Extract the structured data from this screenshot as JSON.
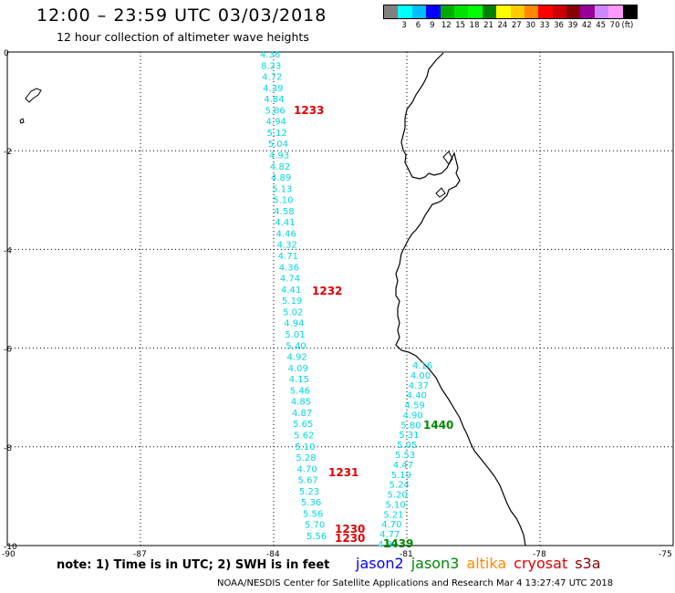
{
  "title": "12:00 – 23:59 UTC 03/03/2018",
  "subtitle": "12 hour collection of altimeter wave heights",
  "legend": {
    "unit": "(ft)",
    "colors": [
      "#808080",
      "#00ffff",
      "#00bfff",
      "#0000ff",
      "#00aa00",
      "#00e000",
      "#00ff00",
      "#008000",
      "#ffff00",
      "#ffcc00",
      "#ff8800",
      "#ff0000",
      "#cc0000",
      "#880000",
      "#990099",
      "#cc88ff",
      "#ff99ff",
      "#000000"
    ],
    "values": [
      "3",
      "6",
      "9",
      "12",
      "15",
      "18",
      "21",
      "24",
      "27",
      "30",
      "33",
      "36",
      "39",
      "42",
      "45",
      "70"
    ]
  },
  "axes": {
    "lat_labels": [
      "0",
      "-2",
      "-4",
      "-6",
      "-8",
      "-10"
    ],
    "lon_labels": [
      "-90",
      "-87",
      "-84",
      "-81",
      "-78",
      "-75"
    ],
    "lat_range": [
      -10,
      0
    ],
    "lon_range": [
      -90,
      -75
    ]
  },
  "tracks": {
    "track1": {
      "swh": [
        "4.36",
        "8.23",
        "4.72",
        "4.39",
        "4.84",
        "5.86",
        "4.94",
        "5.12",
        "5.04",
        "4.93",
        "4.82",
        "4.89",
        "5.13",
        "5.10",
        "4.58",
        "4.41",
        "4.46",
        "4.32",
        "4.71",
        "4.36",
        "4.74",
        "4.41",
        "5.19",
        "5.02",
        "4.94",
        "5.01",
        "5.40",
        "4.92",
        "4.09",
        "4.15",
        "5.46",
        "4.85",
        "4.87",
        "5.65",
        "5.62",
        "5.10",
        "5.28",
        "4.70",
        "5.67",
        "5.23",
        "5.36",
        "5.56",
        "5.70",
        "5.56"
      ],
      "times": [
        "1233",
        "1232",
        "1231",
        "1230",
        "1230"
      ]
    },
    "track2": {
      "swh": [
        "4.16",
        "4.00",
        "4.37",
        "4.40",
        "4.59",
        "4.90",
        "5.80",
        "5.31",
        "5.05",
        "5.53",
        "4.47",
        "5.19",
        "5.24",
        "5.20",
        "5.10",
        "5.21",
        "4.70",
        "4.77",
        "4.89"
      ],
      "times": [
        "1440",
        "1439"
      ]
    }
  },
  "note": "note:  1) Time is in UTC; 2) SWH is in feet",
  "satellites": [
    {
      "name": "jason2",
      "color": "#0000ff"
    },
    {
      "name": "jason3",
      "color": "#008800"
    },
    {
      "name": "altika",
      "color": "#ff8800"
    },
    {
      "name": "cryosat",
      "color": "#e00000"
    },
    {
      "name": "s3a",
      "color": "#880000"
    }
  ],
  "footer": "NOAA/NESDIS Center for Satellite Applications and Research   Mar  4 13:27:47 UTC 2018"
}
